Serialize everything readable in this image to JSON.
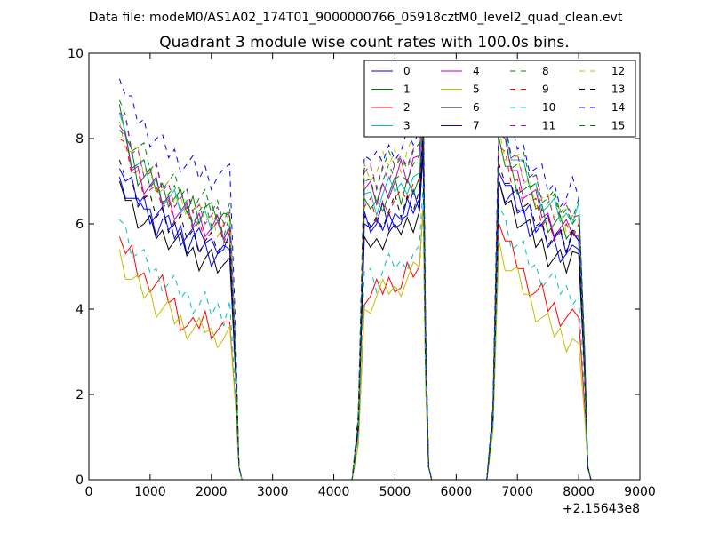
{
  "chart_data": {
    "type": "line",
    "suptitle": "Data file: modeM0/AS1A02_174T01_9000000766_05918cztM0_level2_quad_clean.evt",
    "title": "Quadrant 3 module wise count rates with 100.0s bins.",
    "xlabel": "",
    "ylabel": "",
    "x_offset_label": "+2.15643e8",
    "xlim": [
      0,
      9000
    ],
    "ylim": [
      0,
      10
    ],
    "xticks": [
      0,
      1000,
      2000,
      3000,
      4000,
      5000,
      6000,
      7000,
      8000,
      9000
    ],
    "yticks": [
      0,
      2,
      4,
      6,
      8,
      10
    ],
    "legend_position": "top-right",
    "segments": [
      {
        "start": 500,
        "end": 2300,
        "n": 19
      },
      {
        "start": 4500,
        "end": 5400,
        "n": 10
      },
      {
        "start": 6700,
        "end": 8000,
        "n": 14
      }
    ],
    "series": [
      {
        "name": "0",
        "color": "#0000ff",
        "dash": false,
        "seg_values": [
          [
            7.1,
            6.9,
            6.6,
            6.3,
            6.5,
            6.2,
            6.0,
            6.1,
            5.9,
            5.8,
            5.8,
            5.6,
            5.7,
            5.6,
            5.7,
            5.5,
            5.6,
            5.4,
            5.8
          ],
          [
            6.3,
            6.1,
            6.0,
            6.2,
            6.0,
            6.1,
            6.4,
            6.2,
            6.5,
            6.3
          ],
          [
            7.0,
            6.8,
            6.7,
            6.5,
            6.4,
            6.3,
            6.1,
            6.0,
            5.9,
            5.8,
            5.7,
            5.6,
            5.5,
            5.4
          ]
        ]
      },
      {
        "name": "1",
        "color": "#008000",
        "dash": false,
        "seg_values": [
          [
            8.8,
            8.2,
            7.6,
            7.2,
            7.1,
            7.0,
            6.9,
            6.8,
            6.7,
            6.6,
            6.5,
            6.4,
            6.5,
            6.3,
            6.4,
            6.2,
            6.2,
            6.1,
            6.2
          ],
          [
            6.6,
            6.5,
            6.4,
            6.6,
            6.7,
            6.8,
            6.6,
            6.9,
            7.0,
            7.1
          ],
          [
            8.0,
            7.5,
            7.2,
            7.0,
            6.8,
            6.6,
            6.5,
            6.3,
            6.1,
            6.0,
            5.9,
            5.8,
            5.7,
            5.6
          ]
        ]
      },
      {
        "name": "2",
        "color": "#ff0000",
        "dash": false,
        "seg_values": [
          [
            5.7,
            5.3,
            5.2,
            4.9,
            4.7,
            4.7,
            4.6,
            4.5,
            4.3,
            4.1,
            3.8,
            3.6,
            3.5,
            3.7,
            3.8,
            3.6,
            3.5,
            3.4,
            3.7
          ],
          [
            4.1,
            4.3,
            4.4,
            4.5,
            4.6,
            4.7,
            4.5,
            4.8,
            4.9,
            5.0
          ],
          [
            6.0,
            5.6,
            5.3,
            5.1,
            4.8,
            4.6,
            4.4,
            4.3,
            4.1,
            4.0,
            3.9,
            3.8,
            3.7,
            3.8
          ]
        ]
      },
      {
        "name": "3",
        "color": "#00bfbf",
        "dash": false,
        "seg_values": [
          [
            8.6,
            8.0,
            7.6,
            7.4,
            7.2,
            7.0,
            6.9,
            6.7,
            6.6,
            6.5,
            6.4,
            6.3,
            6.2,
            6.1,
            6.0,
            6.0,
            5.9,
            5.9,
            6.0
          ],
          [
            6.7,
            6.6,
            6.5,
            6.7,
            6.8,
            6.9,
            6.8,
            7.0,
            7.1,
            7.2
          ],
          [
            8.4,
            8.0,
            7.8,
            7.5,
            7.2,
            7.0,
            6.8,
            6.6,
            6.4,
            6.3,
            6.2,
            6.1,
            6.3,
            6.5
          ]
        ]
      },
      {
        "name": "4",
        "color": "#bf00bf",
        "dash": false,
        "seg_values": [
          [
            8.3,
            7.8,
            7.4,
            7.2,
            7.0,
            6.9,
            6.8,
            6.6,
            6.5,
            6.4,
            6.3,
            6.2,
            6.1,
            6.1,
            6.0,
            5.9,
            5.9,
            5.8,
            5.9
          ],
          [
            6.8,
            6.7,
            6.6,
            6.8,
            6.9,
            7.0,
            7.2,
            7.1,
            7.4,
            7.6
          ],
          [
            8.1,
            7.7,
            7.4,
            7.1,
            6.9,
            6.7,
            6.5,
            6.3,
            6.1,
            6.0,
            5.9,
            5.8,
            5.9,
            5.7
          ]
        ]
      },
      {
        "name": "5",
        "color": "#bfbf00",
        "dash": false,
        "seg_values": [
          [
            5.4,
            5.0,
            4.7,
            4.5,
            4.4,
            4.3,
            4.1,
            4.0,
            3.9,
            3.8,
            3.7,
            3.6,
            3.5,
            3.5,
            3.6,
            3.4,
            3.4,
            3.3,
            3.6
          ],
          [
            4.0,
            4.2,
            4.3,
            4.4,
            4.5,
            4.4,
            4.6,
            4.7,
            4.8,
            5.0
          ],
          [
            5.6,
            5.2,
            4.9,
            4.7,
            4.5,
            4.2,
            4.0,
            3.8,
            3.6,
            3.5,
            3.4,
            3.3,
            3.3,
            3.2
          ]
        ]
      },
      {
        "name": "6",
        "color": "#000000",
        "dash": false,
        "seg_values": [
          [
            7.0,
            6.7,
            6.4,
            6.2,
            6.0,
            5.9,
            5.8,
            5.7,
            5.7,
            5.6,
            5.5,
            5.4,
            5.3,
            5.2,
            5.2,
            5.1,
            5.0,
            4.9,
            5.2
          ],
          [
            5.7,
            5.6,
            5.5,
            5.7,
            5.8,
            5.7,
            5.9,
            6.0,
            6.1,
            6.3
          ],
          [
            7.0,
            6.6,
            6.4,
            6.2,
            6.0,
            5.8,
            5.6,
            5.5,
            5.3,
            5.2,
            5.1,
            5.0,
            5.2,
            5.3
          ]
        ]
      },
      {
        "name": "7",
        "color": "#0000ff",
        "dash": false,
        "seg_values": [
          [
            7.3,
            7.0,
            6.8,
            6.6,
            6.5,
            6.3,
            6.2,
            6.1,
            6.0,
            5.9,
            5.8,
            5.7,
            5.6,
            5.5,
            5.4,
            5.3,
            5.3,
            5.2,
            5.4
          ],
          [
            6.0,
            5.9,
            5.8,
            6.0,
            6.1,
            6.2,
            6.0,
            6.3,
            6.4,
            6.6
          ],
          [
            7.2,
            6.9,
            6.6,
            6.4,
            6.2,
            6.0,
            5.9,
            5.7,
            5.6,
            5.5,
            5.4,
            5.3,
            5.5,
            5.6
          ]
        ]
      },
      {
        "name": "8",
        "color": "#008000",
        "dash": true,
        "seg_values": [
          [
            8.9,
            8.4,
            8.0,
            7.8,
            7.6,
            7.4,
            7.3,
            7.1,
            7.0,
            6.9,
            6.8,
            6.7,
            6.6,
            6.6,
            6.5,
            6.4,
            6.4,
            6.3,
            6.5
          ],
          [
            7.0,
            6.9,
            6.8,
            7.0,
            7.1,
            7.2,
            7.0,
            7.3,
            7.4,
            7.6
          ],
          [
            8.6,
            8.2,
            7.9,
            7.6,
            7.4,
            7.2,
            7.0,
            6.8,
            6.6,
            6.5,
            6.4,
            6.3,
            6.4,
            6.6
          ]
        ]
      },
      {
        "name": "9",
        "color": "#ff0000",
        "dash": true,
        "seg_values": [
          [
            8.0,
            7.6,
            7.3,
            7.1,
            6.9,
            6.8,
            6.6,
            6.5,
            6.4,
            6.3,
            6.2,
            6.1,
            6.0,
            5.9,
            5.9,
            5.8,
            5.8,
            5.7,
            5.9
          ],
          [
            6.4,
            6.3,
            6.2,
            6.4,
            6.5,
            6.6,
            6.5,
            6.7,
            6.8,
            7.0
          ],
          [
            7.8,
            7.4,
            7.1,
            6.9,
            6.7,
            6.5,
            6.3,
            6.1,
            6.0,
            5.9,
            5.8,
            5.7,
            5.8,
            6.0
          ]
        ]
      },
      {
        "name": "10",
        "color": "#00bfbf",
        "dash": true,
        "seg_values": [
          [
            6.1,
            5.8,
            5.5,
            5.3,
            5.1,
            5.0,
            4.8,
            4.7,
            4.6,
            4.5,
            4.4,
            4.3,
            4.2,
            4.1,
            4.1,
            4.0,
            4.0,
            3.9,
            4.2
          ],
          [
            4.9,
            4.8,
            4.7,
            4.9,
            5.0,
            5.1,
            5.0,
            5.2,
            5.3,
            5.5
          ],
          [
            6.4,
            6.0,
            5.7,
            5.5,
            5.3,
            5.1,
            4.9,
            4.8,
            4.7,
            4.6,
            4.5,
            4.4,
            4.4,
            4.3
          ]
        ]
      },
      {
        "name": "11",
        "color": "#bf00bf",
        "dash": true,
        "seg_values": [
          [
            8.6,
            8.2,
            7.8,
            7.6,
            7.4,
            7.2,
            7.1,
            6.9,
            6.8,
            6.7,
            6.6,
            6.5,
            6.4,
            6.3,
            6.3,
            6.2,
            6.1,
            6.1,
            6.3
          ],
          [
            7.2,
            7.1,
            7.0,
            7.2,
            7.3,
            7.4,
            7.3,
            7.5,
            7.6,
            7.8
          ],
          [
            8.4,
            8.0,
            7.7,
            7.5,
            7.3,
            7.1,
            6.9,
            6.7,
            6.5,
            6.4,
            6.3,
            6.2,
            6.3,
            6.2
          ]
        ]
      },
      {
        "name": "12",
        "color": "#bfbf00",
        "dash": true,
        "seg_values": [
          [
            8.4,
            8.0,
            7.7,
            7.5,
            7.3,
            7.1,
            7.0,
            6.8,
            6.7,
            6.6,
            6.5,
            6.4,
            6.3,
            6.2,
            6.2,
            6.1,
            6.0,
            6.0,
            6.2
          ],
          [
            7.4,
            7.3,
            7.2,
            7.4,
            7.5,
            7.6,
            7.5,
            7.7,
            7.8,
            8.0
          ],
          [
            8.2,
            7.8,
            7.5,
            7.3,
            7.1,
            6.9,
            6.7,
            6.6,
            6.4,
            6.3,
            6.2,
            6.1,
            6.2,
            6.1
          ]
        ]
      },
      {
        "name": "13",
        "color": "#000000",
        "dash": true,
        "seg_values": [
          [
            7.5,
            7.2,
            6.9,
            6.7,
            6.6,
            6.4,
            6.3,
            6.2,
            6.1,
            6.0,
            5.9,
            5.8,
            5.7,
            5.6,
            5.6,
            5.5,
            5.5,
            5.4,
            5.6
          ],
          [
            6.2,
            6.1,
            6.0,
            6.2,
            6.3,
            6.4,
            6.3,
            6.5,
            6.6,
            6.8
          ],
          [
            7.4,
            7.1,
            6.8,
            6.6,
            6.4,
            6.2,
            6.1,
            5.9,
            5.8,
            5.7,
            5.6,
            5.5,
            5.7,
            5.8
          ]
        ]
      },
      {
        "name": "14",
        "color": "#0000ff",
        "dash": true,
        "seg_values": [
          [
            9.4,
            9.0,
            8.7,
            8.5,
            8.3,
            8.1,
            8.0,
            7.8,
            7.7,
            7.6,
            7.5,
            7.4,
            7.3,
            7.2,
            7.2,
            7.1,
            7.1,
            7.0,
            7.4
          ],
          [
            7.6,
            7.5,
            7.4,
            7.6,
            7.7,
            7.8,
            7.7,
            7.9,
            8.0,
            8.2
          ],
          [
            8.8,
            8.4,
            8.1,
            7.9,
            7.7,
            7.5,
            7.3,
            7.1,
            6.9,
            6.8,
            6.7,
            6.6,
            6.8,
            6.6
          ]
        ]
      },
      {
        "name": "15",
        "color": "#008000",
        "dash": true,
        "seg_values": [
          [
            8.2,
            7.9,
            7.6,
            7.4,
            7.2,
            7.0,
            6.9,
            6.8,
            6.7,
            6.6,
            6.5,
            6.4,
            6.3,
            6.3,
            6.2,
            6.1,
            6.1,
            6.0,
            6.2
          ],
          [
            7.3,
            7.2,
            7.1,
            7.3,
            7.4,
            7.5,
            7.4,
            7.6,
            7.7,
            7.9
          ],
          [
            8.3,
            7.9,
            7.6,
            7.4,
            7.2,
            7.0,
            6.8,
            6.6,
            6.5,
            6.4,
            6.3,
            6.2,
            6.3,
            6.2
          ]
        ]
      }
    ]
  }
}
